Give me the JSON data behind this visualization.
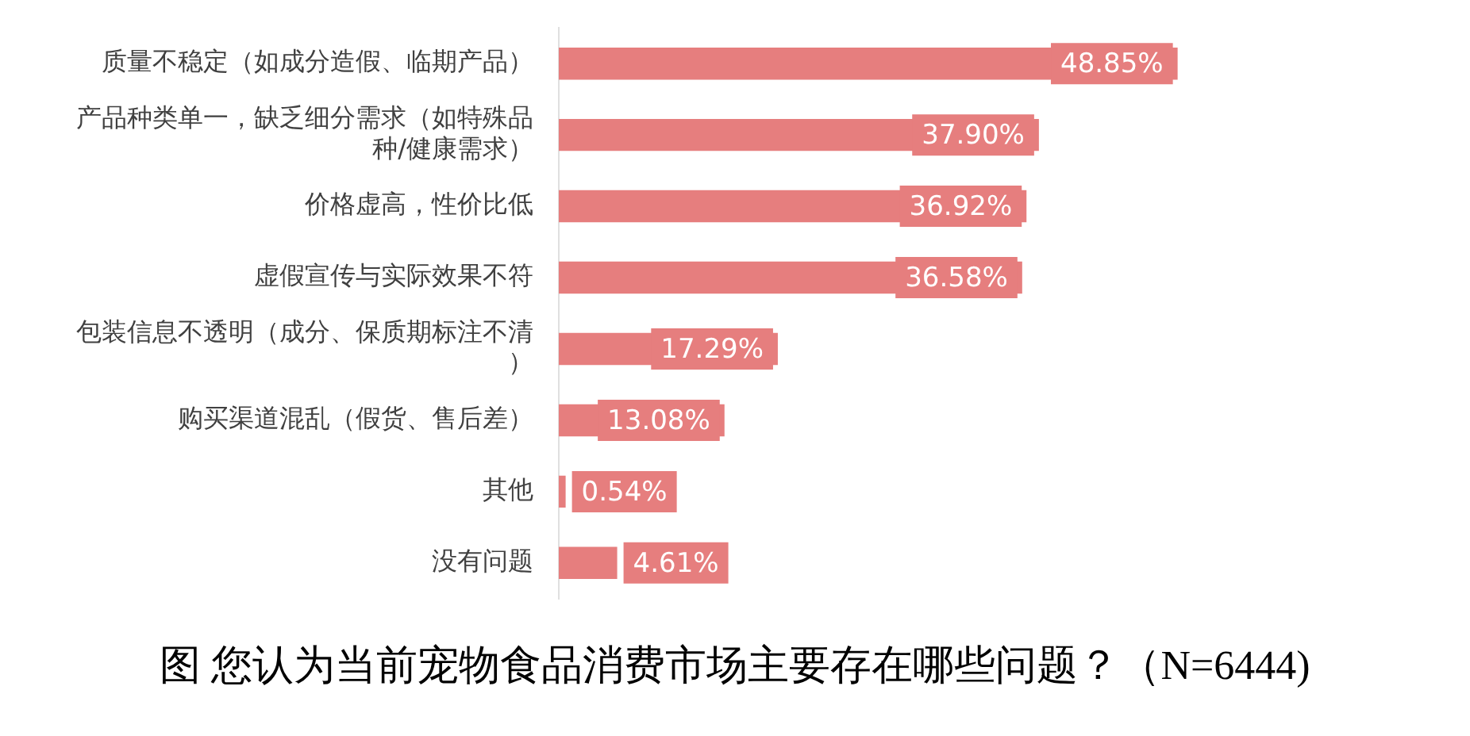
{
  "chart_data": {
    "type": "bar",
    "orientation": "horizontal",
    "title": "图  您认为当前宠物食品消费市场主要存在哪些问题？（N=6444)",
    "categories": [
      "质量不稳定（如成分造假、临期产品）",
      "产品种类单一，缺乏细分需求（如特殊品种/健康需求）",
      "价格虚高，性价比低",
      "虚假宣传与实际效果不符",
      "包装信息不透明（成分、保质期标注不清）",
      "购买渠道混乱（假货、售后差）",
      "其他",
      "没有问题"
    ],
    "values": [
      48.85,
      37.9,
      36.92,
      36.58,
      17.29,
      13.08,
      0.54,
      4.61
    ],
    "value_labels": [
      "48.85%",
      "37.90%",
      "36.92%",
      "36.58%",
      "17.29%",
      "13.08%",
      "0.54%",
      "4.61%"
    ],
    "color": "#e67e7e",
    "grid": false,
    "legend": false
  }
}
